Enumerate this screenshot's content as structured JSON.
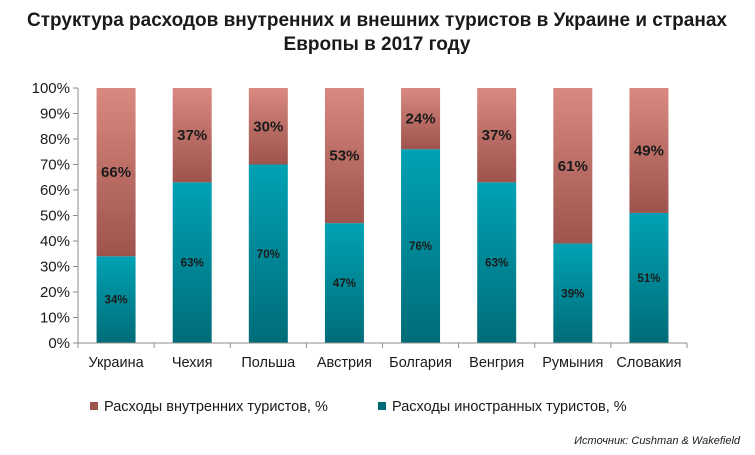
{
  "chart_data": {
    "type": "bar",
    "stacked": true,
    "title_line1": "Структура расходов внутренних и внешних туристов в Украине и странах",
    "title_line2": "Европы в 2017 году",
    "categories": [
      "Украина",
      "Чехия",
      "Польша",
      "Австрия",
      "Болгария",
      "Венгрия",
      "Румыния",
      "Словакия"
    ],
    "series": [
      {
        "name": "Расходы иностранных  туристов, %",
        "values": [
          34,
          63,
          70,
          47,
          76,
          63,
          39,
          51
        ],
        "color": "#00a2b4",
        "color_dark": "#006c78"
      },
      {
        "name": "Расходы внутренних  туристов, %",
        "values": [
          66,
          37,
          30,
          53,
          24,
          37,
          61,
          49
        ],
        "color": "#d98980",
        "color_dark": "#9e534c"
      }
    ],
    "data_labels_bottom": [
      "34%",
      "63%",
      "70%",
      "47%",
      "76%",
      "63%",
      "39%",
      "51%"
    ],
    "data_labels_top": [
      "66%",
      "37%",
      "30%",
      "53%",
      "24%",
      "37%",
      "61%",
      "49%"
    ],
    "y_ticks": [
      "0%",
      "10%",
      "20%",
      "30%",
      "40%",
      "50%",
      "60%",
      "70%",
      "80%",
      "90%",
      "100%"
    ],
    "ylim": [
      0,
      100
    ],
    "grid": false,
    "legend_position": "bottom",
    "source": "Источник: Cushman & Wakefield"
  }
}
